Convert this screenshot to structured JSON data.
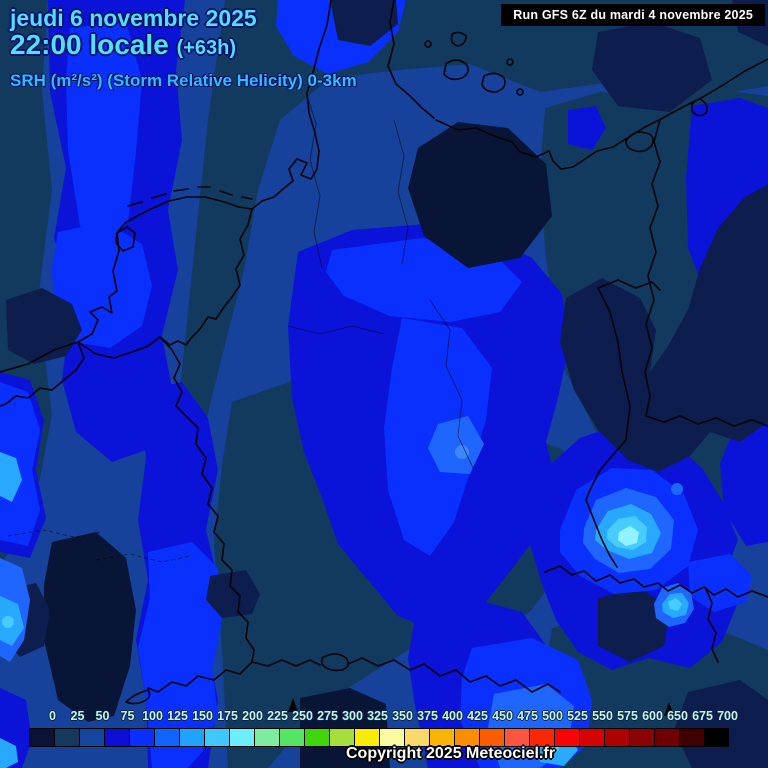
{
  "header": {
    "date_line": "jeudi 6 novembre 2025",
    "time_line": "22:00 locale",
    "offset": "(+63h)",
    "parameter": "SRH (m²/s²) (Storm Relative Helicity) 0-3km",
    "run_info": "Run GFS 6Z du mardi 4 novembre 2025",
    "title_color": "#55dcff",
    "parameter_color": "#2fbdff"
  },
  "legend": {
    "ticks": [
      "0",
      "25",
      "50",
      "75",
      "100",
      "125",
      "150",
      "175",
      "200",
      "225",
      "250",
      "275",
      "300",
      "325",
      "350",
      "375",
      "400",
      "425",
      "450",
      "475",
      "500",
      "525",
      "550",
      "575",
      "600",
      "650",
      "675",
      "700"
    ],
    "colors": [
      "#0a1238",
      "#14395c",
      "#15459c",
      "#0d0fd6",
      "#0a2fff",
      "#1064ff",
      "#20a3ff",
      "#40c8fd",
      "#6deefc",
      "#7dec9e",
      "#55e565",
      "#3fd60b",
      "#a6df3b",
      "#f9eb03",
      "#fafaa2",
      "#fad96b",
      "#fab405",
      "#fa8c00",
      "#fa5d00",
      "#fa5540",
      "#fa2800",
      "#f50505",
      "#d40202",
      "#ad0202",
      "#8c0303",
      "#700000",
      "#400000",
      "#000000"
    ]
  },
  "footer": {
    "copyright": "Copyright 2025 Meteociel.fr"
  }
}
